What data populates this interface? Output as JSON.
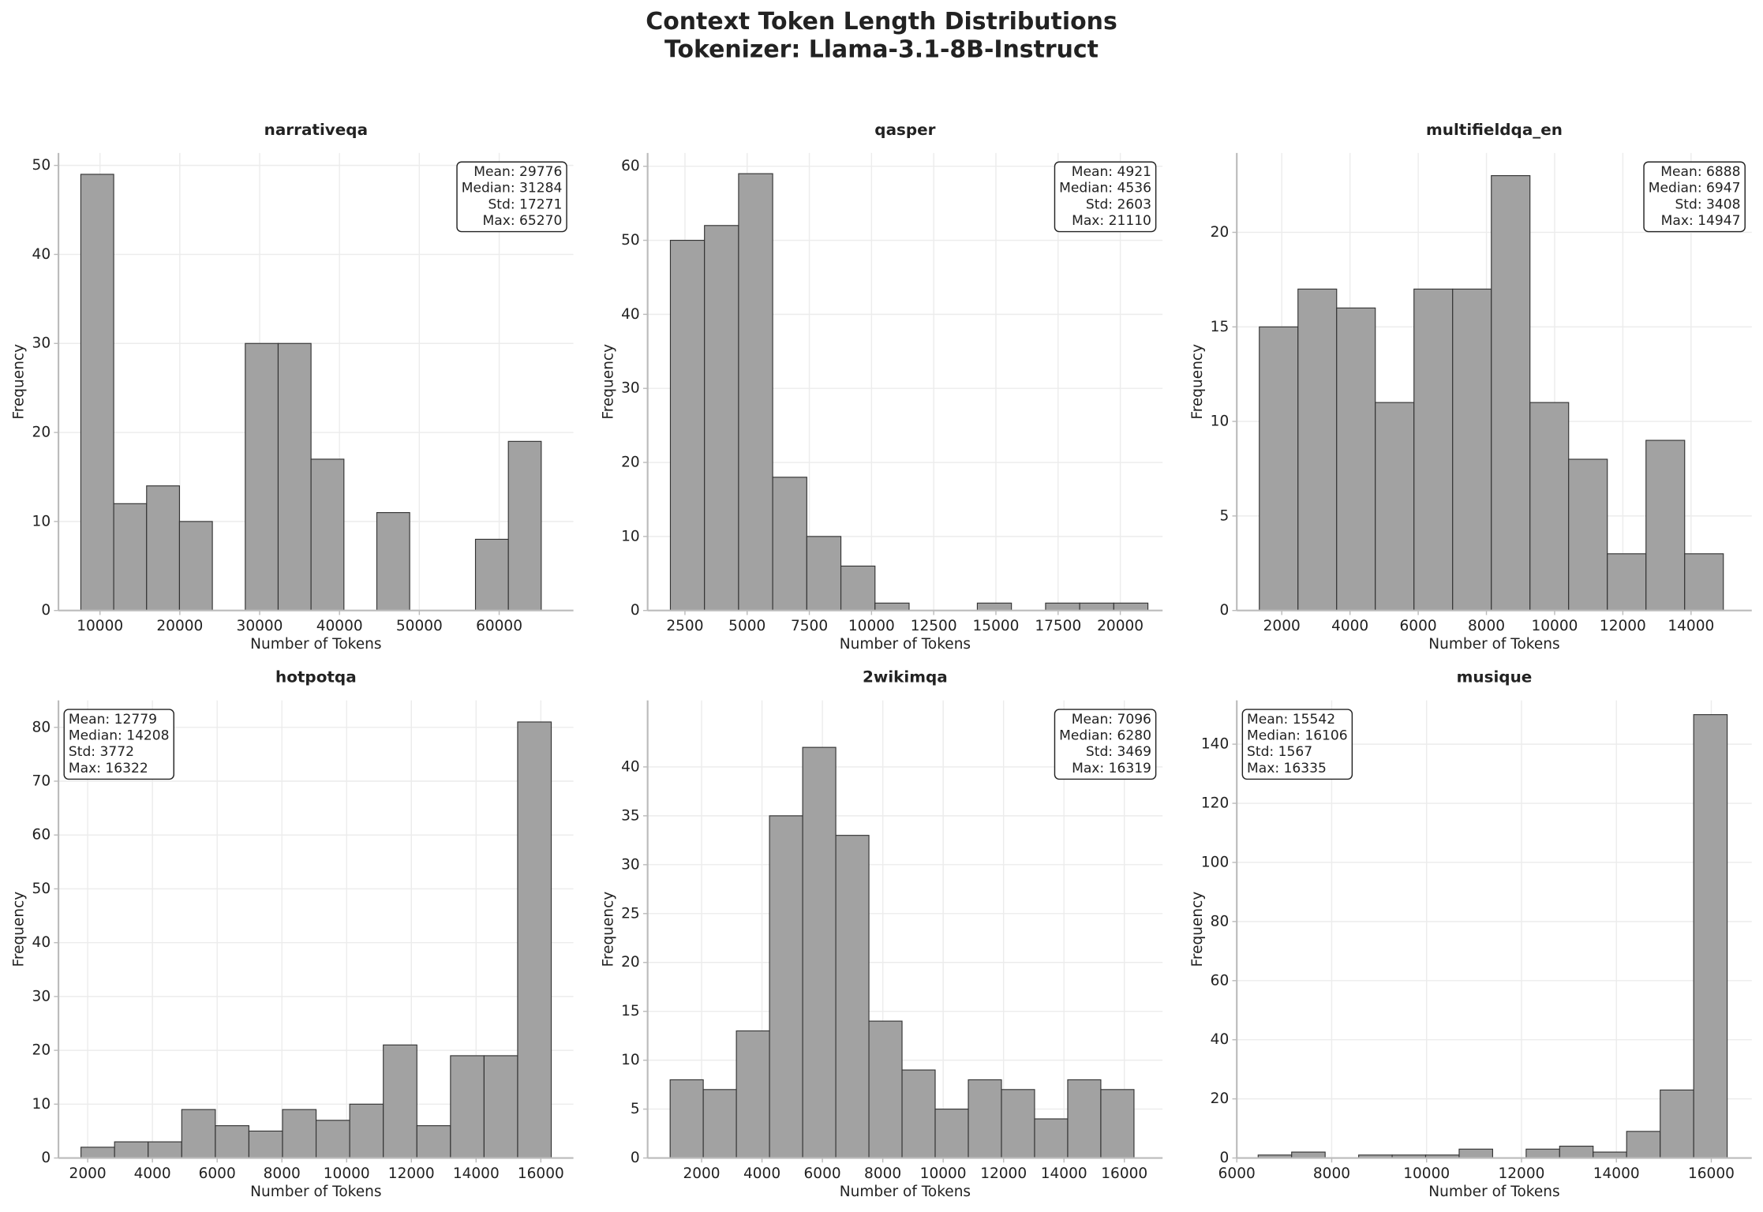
{
  "title": "Context Token Length Distributions",
  "subtitle": "Tokenizer: Llama-3.1-8B-Instruct",
  "chart_data": [
    {
      "type": "histogram",
      "title": "narrativeqa",
      "xlabel": "Number of Tokens",
      "ylabel": "Frequency",
      "bins": [
        7600,
        11719,
        15839,
        19958,
        24077,
        28197,
        32316,
        36435,
        40555,
        44674,
        48793,
        52913,
        57032,
        61151,
        65270
      ],
      "counts": [
        49,
        12,
        14,
        10,
        0,
        30,
        30,
        17,
        0,
        11,
        0,
        0,
        8,
        19
      ],
      "xlim": [
        4800,
        69300
      ],
      "ylim": [
        0,
        51.4
      ],
      "xticks": [
        10000,
        20000,
        30000,
        40000,
        50000,
        60000
      ],
      "yticks": [
        0,
        10,
        20,
        30,
        40,
        50
      ],
      "color": "#a2a2a2",
      "edgecolor": "#333333",
      "grid": true,
      "stats": [
        "Mean: 29776",
        "Median: 31284",
        "Std: 17271",
        "Max: 65270"
      ],
      "stats_corner": "upper right"
    },
    {
      "type": "histogram",
      "title": "qasper",
      "xlabel": "Number of Tokens",
      "ylabel": "Frequency",
      "bins": [
        1914,
        3285,
        4656,
        6027,
        7398,
        8769,
        10140,
        11511,
        12882,
        14253,
        15624,
        16996,
        18367,
        19738,
        21110
      ],
      "counts": [
        50,
        52,
        59,
        18,
        10,
        6,
        1,
        0,
        0,
        1,
        0,
        1,
        1,
        1
      ],
      "xlim": [
        1000,
        21700
      ],
      "ylim": [
        0,
        61.8
      ],
      "xticks": [
        2500,
        5000,
        7500,
        10000,
        12500,
        15000,
        17500,
        20000
      ],
      "yticks": [
        0,
        10,
        20,
        30,
        40,
        50,
        60
      ],
      "color": "#a2a2a2",
      "edgecolor": "#333333",
      "grid": true,
      "stats": [
        "Mean: 4921",
        "Median: 4536",
        "Std: 2603",
        "Max: 21110"
      ],
      "stats_corner": "upper right"
    },
    {
      "type": "histogram",
      "title": "multifieldqa_en",
      "xlabel": "Number of Tokens",
      "ylabel": "Frequency",
      "bins": [
        1341,
        2475,
        3609,
        4742,
        5876,
        7010,
        8144,
        9277,
        10411,
        11545,
        12679,
        13813,
        14947
      ],
      "counts": [
        15,
        17,
        16,
        11,
        17,
        17,
        23,
        11,
        8,
        3,
        9,
        3
      ],
      "xlim": [
        681,
        15780
      ],
      "ylim": [
        0,
        24.2
      ],
      "xticks": [
        2000,
        4000,
        6000,
        8000,
        10000,
        12000,
        14000
      ],
      "yticks": [
        0,
        5,
        10,
        15,
        20
      ],
      "color": "#a2a2a2",
      "edgecolor": "#333333",
      "grid": true,
      "stats": [
        "Mean: 6888",
        "Median: 6947",
        "Std: 3408",
        "Max: 14947"
      ],
      "stats_corner": "upper right"
    },
    {
      "type": "histogram",
      "title": "hotpotqa",
      "xlabel": "Number of Tokens",
      "ylabel": "Frequency",
      "bins": [
        1792,
        2830,
        3868,
        4906,
        5944,
        6981,
        8019,
        9057,
        10095,
        11133,
        12171,
        13209,
        14246,
        15284,
        16322
      ],
      "counts": [
        2,
        3,
        3,
        9,
        6,
        5,
        9,
        7,
        10,
        21,
        6,
        19,
        19,
        81
      ],
      "xlim": [
        1097,
        17007
      ],
      "ylim": [
        0,
        85
      ],
      "xticks": [
        2000,
        4000,
        6000,
        8000,
        10000,
        12000,
        14000,
        16000
      ],
      "yticks": [
        0,
        10,
        20,
        30,
        40,
        50,
        60,
        70,
        80
      ],
      "color": "#a2a2a2",
      "edgecolor": "#333333",
      "grid": true,
      "stats": [
        "Mean: 12779",
        "Median: 14208",
        "Std: 3772",
        "Max: 16322"
      ],
      "stats_corner": "upper left"
    },
    {
      "type": "histogram",
      "title": "2wikimqa",
      "xlabel": "Number of Tokens",
      "ylabel": "Frequency",
      "bins": [
        958,
        2055,
        3152,
        4249,
        5347,
        6444,
        7541,
        8638,
        9735,
        10833,
        11930,
        13027,
        14124,
        15221,
        16319
      ],
      "counts": [
        8,
        7,
        13,
        35,
        42,
        33,
        14,
        9,
        5,
        8,
        7,
        4,
        8,
        7
      ],
      "xlim": [
        213,
        17266
      ],
      "ylim": [
        0,
        46.8
      ],
      "xticks": [
        2000,
        4000,
        6000,
        8000,
        10000,
        12000,
        14000,
        16000
      ],
      "yticks": [
        0,
        5,
        10,
        15,
        20,
        25,
        30,
        35,
        40
      ],
      "color": "#a2a2a2",
      "edgecolor": "#333333",
      "grid": true,
      "stats": [
        "Mean: 7096",
        "Median: 6280",
        "Std: 3469",
        "Max: 16319"
      ],
      "stats_corner": "upper right"
    },
    {
      "type": "histogram",
      "title": "musique",
      "xlabel": "Number of Tokens",
      "ylabel": "Frequency",
      "bins": [
        6450,
        7156,
        7862,
        8568,
        9274,
        9980,
        10686,
        11392,
        12098,
        12804,
        13510,
        14216,
        14923,
        15629,
        16335
      ],
      "counts": [
        1,
        2,
        0,
        1,
        1,
        1,
        3,
        0,
        3,
        4,
        2,
        9,
        23,
        150
      ],
      "xlim": [
        6000,
        16853
      ],
      "ylim": [
        0,
        154.8
      ],
      "xticks": [
        6000,
        8000,
        10000,
        12000,
        14000,
        16000
      ],
      "yticks": [
        0,
        20,
        40,
        60,
        80,
        100,
        120,
        140
      ],
      "color": "#a2a2a2",
      "edgecolor": "#333333",
      "grid": true,
      "stats": [
        "Mean: 15542",
        "Median: 16106",
        "Std: 1567",
        "Max: 16335"
      ],
      "stats_corner": "upper left"
    }
  ]
}
